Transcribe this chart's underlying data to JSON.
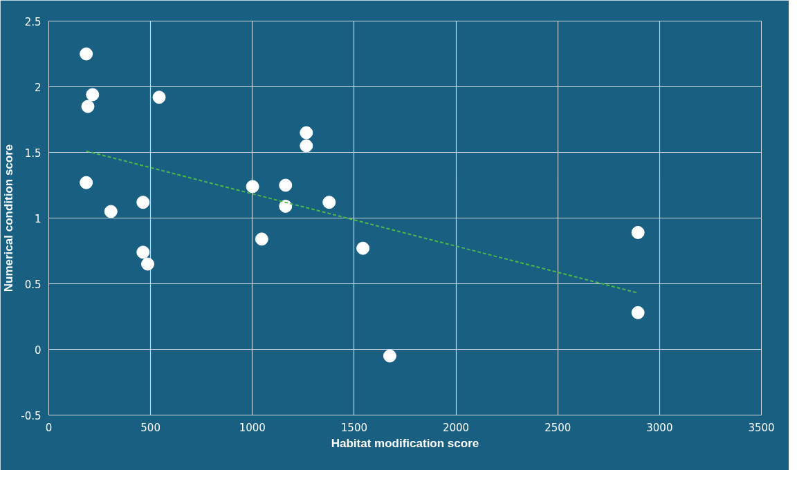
{
  "chart_data": {
    "type": "scatter",
    "xlabel": "Habitat modification score",
    "ylabel": "Numerical condition score",
    "xlim": [
      0,
      3500
    ],
    "xticks": [
      0,
      500,
      1000,
      1500,
      2000,
      2500,
      3000,
      3500
    ],
    "ylim": [
      -0.5,
      2.5
    ],
    "yticks": [
      -0.5,
      0,
      0.5,
      1,
      1.5,
      2,
      2.5
    ],
    "grid": true,
    "series": [
      {
        "marker": "circle",
        "color": "#ffffff",
        "x": [
          184,
          215,
          192,
          542,
          184,
          305,
          463,
          463,
          486,
          1001,
          1046,
          1163,
          1163,
          1265,
          1265,
          1377,
          1543,
          1675,
          2894,
          2894
        ],
        "values": [
          2.25,
          1.94,
          1.85,
          1.92,
          1.27,
          1.05,
          1.12,
          0.74,
          0.65,
          1.24,
          0.84,
          1.25,
          1.09,
          1.65,
          1.55,
          1.12,
          0.77,
          -0.05,
          0.89,
          0.28
        ]
      },
      {
        "type": "line",
        "color": "#4cb84c",
        "line_style": "dashed",
        "marker": "none",
        "x": [
          184,
          2894
        ],
        "values": [
          1.51,
          0.43
        ]
      }
    ]
  }
}
